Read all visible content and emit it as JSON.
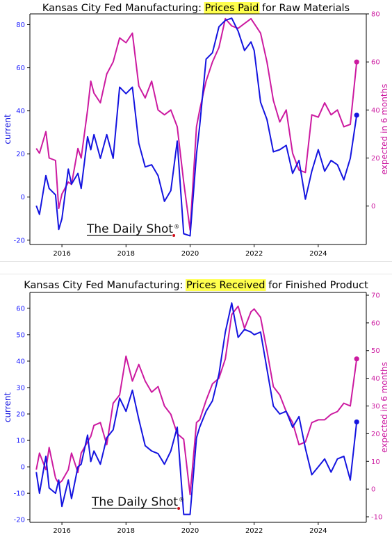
{
  "charts": [
    {
      "id": "top",
      "title_prefix": "Kansas City Fed Manufacturing: ",
      "title_highlight": "Prices Paid",
      "title_suffix": " for Raw Materials",
      "ylabel_left": "current",
      "ylabel_right": "expected in 6 months",
      "watermark": "The Daily Shot",
      "watermark_reg": "®"
    },
    {
      "id": "bottom",
      "title_prefix": "Kansas City Fed Manufacturing: ",
      "title_highlight": "Prices Received",
      "title_suffix": " for Finished Product",
      "ylabel_left": "current",
      "ylabel_right": "expected in 6 months",
      "watermark": "The Daily Shot",
      "watermark_reg": "®"
    }
  ],
  "colors": {
    "current": "#1414e0",
    "expected": "#cc1aa0",
    "highlight": "#ffff4d",
    "axis": "#000000"
  },
  "chart_data": [
    {
      "type": "line",
      "title": "Kansas City Fed Manufacturing: Prices Paid for Raw Materials",
      "xlabel": "",
      "ylabel": "current",
      "y2label": "expected in 6 months",
      "xlim": [
        2015.0,
        2025.5
      ],
      "ylim": [
        -22,
        85
      ],
      "y2lim": [
        -16,
        80
      ],
      "xticks": [
        2016,
        2018,
        2020,
        2022,
        2024
      ],
      "yticks": [
        -20,
        0,
        20,
        40,
        60,
        80
      ],
      "y2ticks": [
        0,
        20,
        40,
        60,
        80
      ],
      "series": [
        {
          "name": "current",
          "axis": "left",
          "x": [
            2015.2,
            2015.3,
            2015.5,
            2015.6,
            2015.8,
            2015.9,
            2016.0,
            2016.2,
            2016.3,
            2016.5,
            2016.6,
            2016.8,
            2016.9,
            2017.0,
            2017.2,
            2017.4,
            2017.6,
            2017.8,
            2018.0,
            2018.2,
            2018.4,
            2018.6,
            2018.8,
            2019.0,
            2019.2,
            2019.4,
            2019.6,
            2019.8,
            2020.0,
            2020.2,
            2020.3,
            2020.5,
            2020.7,
            2020.9,
            2021.1,
            2021.3,
            2021.5,
            2021.7,
            2021.9,
            2022.0,
            2022.2,
            2022.4,
            2022.6,
            2022.8,
            2023.0,
            2023.2,
            2023.4,
            2023.6,
            2023.8,
            2024.0,
            2024.2,
            2024.4,
            2024.6,
            2024.8,
            2025.0,
            2025.2
          ],
          "y": [
            -4,
            -8,
            10,
            4,
            1,
            -15,
            -10,
            13,
            6,
            11,
            4,
            28,
            22,
            29,
            18,
            29,
            18,
            51,
            48,
            51,
            25,
            14,
            15,
            10,
            -2,
            3,
            26,
            -17,
            -18,
            20,
            33,
            64,
            67,
            79,
            82,
            83,
            77,
            68,
            72,
            68,
            44,
            36,
            21,
            22,
            24,
            11,
            17,
            -1,
            12,
            22,
            12,
            17,
            15,
            8,
            18,
            38
          ]
        },
        {
          "name": "expected in 6 months",
          "axis": "right",
          "x": [
            2015.2,
            2015.3,
            2015.5,
            2015.6,
            2015.8,
            2015.9,
            2016.0,
            2016.2,
            2016.3,
            2016.5,
            2016.6,
            2016.8,
            2016.9,
            2017.0,
            2017.2,
            2017.4,
            2017.6,
            2017.8,
            2018.0,
            2018.2,
            2018.4,
            2018.6,
            2018.8,
            2019.0,
            2019.2,
            2019.4,
            2019.6,
            2019.8,
            2020.0,
            2020.2,
            2020.3,
            2020.5,
            2020.7,
            2020.9,
            2021.1,
            2021.3,
            2021.5,
            2021.7,
            2021.9,
            2022.0,
            2022.2,
            2022.4,
            2022.6,
            2022.8,
            2023.0,
            2023.2,
            2023.4,
            2023.6,
            2023.8,
            2024.0,
            2024.2,
            2024.4,
            2024.6,
            2024.8,
            2025.0,
            2025.2
          ],
          "y": [
            24,
            22,
            31,
            20,
            19,
            -1,
            5,
            10,
            9,
            24,
            20,
            40,
            52,
            47,
            43,
            55,
            60,
            70,
            68,
            72,
            50,
            45,
            52,
            40,
            38,
            40,
            33,
            10,
            -10,
            33,
            40,
            52,
            60,
            66,
            78,
            75,
            74,
            76,
            78,
            76,
            72,
            60,
            44,
            35,
            40,
            22,
            15,
            14,
            38,
            37,
            43,
            38,
            40,
            33,
            34,
            60
          ]
        }
      ],
      "annotations": [
        "The Daily Shot®"
      ]
    },
    {
      "type": "line",
      "title": "Kansas City Fed Manufacturing: Prices Received for Finished Product",
      "xlabel": "",
      "ylabel": "current",
      "y2label": "expected in 6 months",
      "xlim": [
        2015.0,
        2025.5
      ],
      "ylim": [
        -21,
        66
      ],
      "y2lim": [
        -12,
        71
      ],
      "xticks": [
        2016,
        2018,
        2020,
        2022,
        2024
      ],
      "yticks": [
        -20,
        -10,
        0,
        10,
        20,
        30,
        40,
        50,
        60
      ],
      "y2ticks": [
        -10,
        0,
        10,
        20,
        30,
        40,
        50,
        60,
        70
      ],
      "series": [
        {
          "name": "current",
          "axis": "left",
          "x": [
            2015.2,
            2015.3,
            2015.5,
            2015.6,
            2015.8,
            2015.9,
            2016.0,
            2016.2,
            2016.3,
            2016.5,
            2016.6,
            2016.8,
            2016.9,
            2017.0,
            2017.2,
            2017.4,
            2017.6,
            2017.8,
            2018.0,
            2018.2,
            2018.4,
            2018.6,
            2018.8,
            2019.0,
            2019.2,
            2019.4,
            2019.6,
            2019.8,
            2020.0,
            2020.2,
            2020.3,
            2020.5,
            2020.7,
            2020.9,
            2021.1,
            2021.3,
            2021.5,
            2021.7,
            2021.9,
            2022.0,
            2022.2,
            2022.4,
            2022.6,
            2022.8,
            2023.0,
            2023.2,
            2023.4,
            2023.6,
            2023.8,
            2024.0,
            2024.2,
            2024.4,
            2024.6,
            2024.8,
            2025.0,
            2025.2
          ],
          "y": [
            -2,
            -10,
            4,
            -8,
            -10,
            -5,
            -15,
            -5,
            -12,
            0,
            1,
            12,
            2,
            6,
            1,
            11,
            14,
            26,
            21,
            29,
            18,
            8,
            6,
            5,
            1,
            6,
            15,
            -18,
            -18,
            11,
            15,
            21,
            25,
            35,
            51,
            62,
            49,
            52,
            51,
            50,
            51,
            37,
            23,
            20,
            21,
            15,
            19,
            7,
            -3,
            0,
            3,
            -2,
            3,
            4,
            -5,
            17
          ]
        },
        {
          "name": "expected in 6 months",
          "axis": "right",
          "x": [
            2015.2,
            2015.3,
            2015.5,
            2015.6,
            2015.8,
            2015.9,
            2016.0,
            2016.2,
            2016.3,
            2016.5,
            2016.6,
            2016.8,
            2016.9,
            2017.0,
            2017.2,
            2017.4,
            2017.6,
            2017.8,
            2018.0,
            2018.2,
            2018.4,
            2018.6,
            2018.8,
            2019.0,
            2019.2,
            2019.4,
            2019.6,
            2019.8,
            2020.0,
            2020.2,
            2020.3,
            2020.5,
            2020.7,
            2020.9,
            2021.1,
            2021.3,
            2021.5,
            2021.7,
            2021.9,
            2022.0,
            2022.2,
            2022.4,
            2022.6,
            2022.8,
            2023.0,
            2023.2,
            2023.4,
            2023.6,
            2023.8,
            2024.0,
            2024.2,
            2024.4,
            2024.6,
            2024.8,
            2025.0,
            2025.2
          ],
          "y": [
            7,
            13,
            7,
            15,
            4,
            2,
            3,
            7,
            13,
            6,
            13,
            17,
            19,
            23,
            24,
            16,
            31,
            34,
            48,
            39,
            45,
            39,
            35,
            37,
            30,
            27,
            20,
            18,
            -2,
            24,
            25,
            32,
            38,
            40,
            47,
            63,
            66,
            58,
            64,
            65,
            62,
            50,
            37,
            34,
            28,
            24,
            16,
            17,
            24,
            25,
            25,
            27,
            28,
            31,
            30,
            47
          ]
        }
      ],
      "annotations": [
        "The Daily Shot®"
      ]
    }
  ]
}
